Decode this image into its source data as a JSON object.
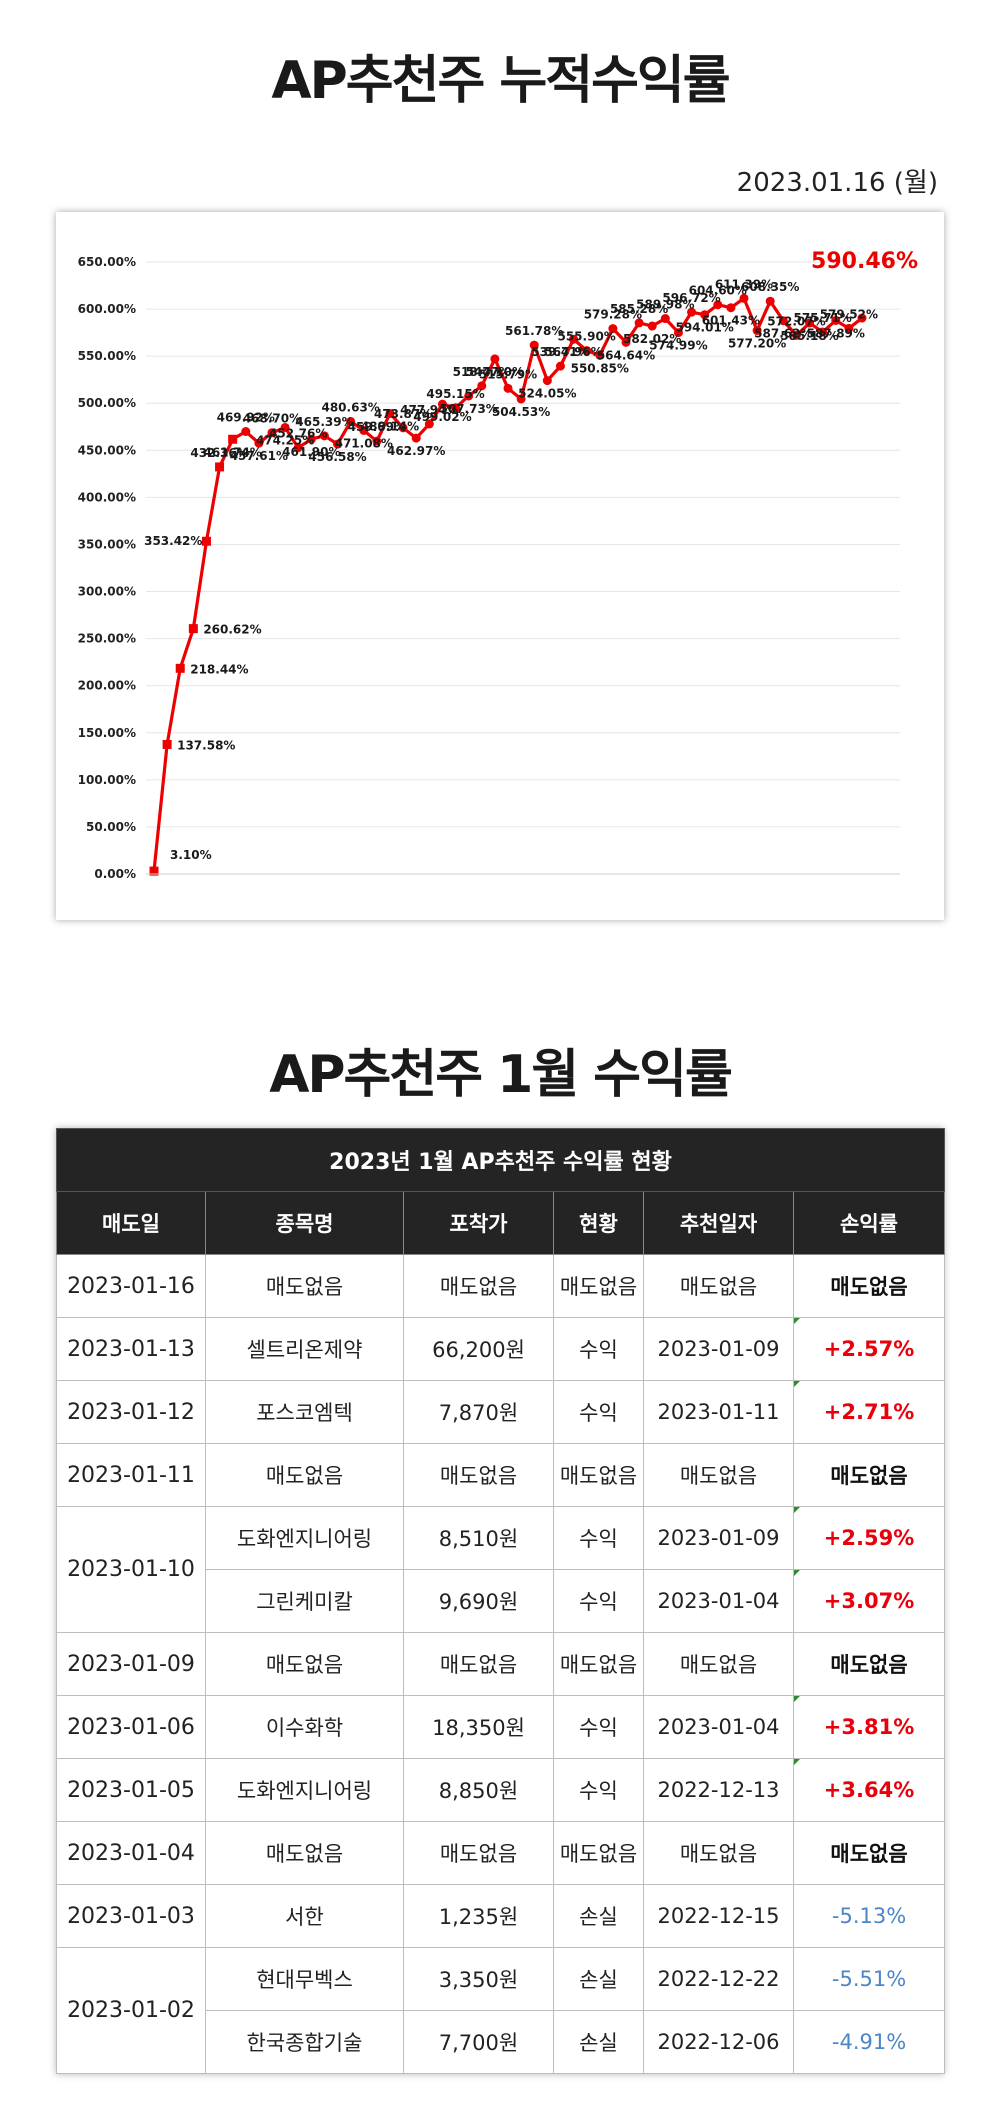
{
  "page": {
    "title1": "AP추천주 누적수익률",
    "date": "2023.01.16 (월)",
    "title2": "AP추천주 1월 수익률"
  },
  "chart_data": {
    "type": "line",
    "title": "",
    "xlabel": "",
    "ylabel": "",
    "ylim": [
      0,
      650
    ],
    "y_ticks": [
      "650.00%",
      "600.00%",
      "550.00%",
      "500.00%",
      "450.00%",
      "400.00%",
      "350.00%",
      "300.00%",
      "250.00%",
      "200.00%",
      "150.00%",
      "100.00%",
      "50.00%",
      "0.00%"
    ],
    "grid": true,
    "legend": "none",
    "line_color": "#ee0000",
    "highlight_label": "590.46%",
    "series": [
      {
        "values": [
          3.1,
          137.58,
          218.44,
          260.62,
          353.42,
          432.36,
          461.74,
          469.92,
          457.61,
          468.7,
          474.25,
          452.76,
          461.9,
          465.39,
          456.58,
          480.63,
          471.08,
          459.69,
          489.14,
          473.87,
          462.97,
          477.94,
          499.02,
          495.15,
          507.73,
          518.47,
          547.1,
          515.79,
          504.53,
          561.78,
          524.05,
          539.41,
          567.96,
          555.9,
          550.85,
          579.28,
          564.64,
          585.28,
          582.02,
          589.98,
          574.99,
          596.72,
          594.01,
          604.6,
          601.43,
          611.39,
          577.2,
          608.35,
          587.62,
          572.07,
          585.18,
          575.71,
          587.89,
          579.52,
          590.46
        ],
        "labels": [
          "3.10%",
          "137.58%",
          "218.44%",
          "260.62%",
          "353.42%",
          "432.36%",
          "461.74%",
          "469.92%",
          "457.61%",
          "468.70%",
          "474.25%",
          "452.76%",
          "461.90%",
          "465.39%",
          "456.58%",
          "480.63%",
          "471.08%",
          "459.69%",
          "489.14%",
          "473.87%",
          "462.97%",
          "477.94%",
          "499.02%",
          "495.15%",
          "507.73%",
          "518.47%",
          "547.10%",
          "515.79%",
          "504.53%",
          "561.78%",
          "524.05%",
          "539.41%",
          "567.96%",
          "555.90%",
          "550.85%",
          "579.28%",
          "564.64%",
          "585.28%",
          "582.02%",
          "589.98%",
          "574.99%",
          "596.72%",
          "594.01%",
          "604.60%",
          "601.43%",
          "611.39%",
          "577.20%",
          "608.35%",
          "587.62%",
          "572.07%",
          "585.18%",
          "575.71%",
          "587.89%",
          "579.52%",
          "590.46%"
        ]
      }
    ]
  },
  "table": {
    "caption": "2023년 1월 AP추천주 수익률 현황",
    "headers": [
      "매도일",
      "종목명",
      "포착가",
      "현황",
      "추천일자",
      "손익률"
    ],
    "colors": {
      "gain": "#e8000b",
      "loss": "#4a86c8"
    },
    "rows": [
      {
        "date": "2023-01-16",
        "span": 1,
        "name": "매도없음",
        "price": "매도없음",
        "status": "매도없음",
        "rec": "매도없음",
        "rate": "매도없음",
        "kind": "none"
      },
      {
        "date": "2023-01-13",
        "span": 1,
        "name": "셀트리온제약",
        "price": "66,200원",
        "status": "수익",
        "rec": "2023-01-09",
        "rate": "+2.57%",
        "kind": "gain"
      },
      {
        "date": "2023-01-12",
        "span": 1,
        "name": "포스코엠텍",
        "price": "7,870원",
        "status": "수익",
        "rec": "2023-01-11",
        "rate": "+2.71%",
        "kind": "gain"
      },
      {
        "date": "2023-01-11",
        "span": 1,
        "name": "매도없음",
        "price": "매도없음",
        "status": "매도없음",
        "rec": "매도없음",
        "rate": "매도없음",
        "kind": "none"
      },
      {
        "date": "2023-01-10",
        "span": 2,
        "name": "도화엔지니어링",
        "price": "8,510원",
        "status": "수익",
        "rec": "2023-01-09",
        "rate": "+2.59%",
        "kind": "gain"
      },
      {
        "date": "",
        "span": 0,
        "name": "그린케미칼",
        "price": "9,690원",
        "status": "수익",
        "rec": "2023-01-04",
        "rate": "+3.07%",
        "kind": "gain"
      },
      {
        "date": "2023-01-09",
        "span": 1,
        "name": "매도없음",
        "price": "매도없음",
        "status": "매도없음",
        "rec": "매도없음",
        "rate": "매도없음",
        "kind": "none"
      },
      {
        "date": "2023-01-06",
        "span": 1,
        "name": "이수화학",
        "price": "18,350원",
        "status": "수익",
        "rec": "2023-01-04",
        "rate": "+3.81%",
        "kind": "gain"
      },
      {
        "date": "2023-01-05",
        "span": 1,
        "name": "도화엔지니어링",
        "price": "8,850원",
        "status": "수익",
        "rec": "2022-12-13",
        "rate": "+3.64%",
        "kind": "gain"
      },
      {
        "date": "2023-01-04",
        "span": 1,
        "name": "매도없음",
        "price": "매도없음",
        "status": "매도없음",
        "rec": "매도없음",
        "rate": "매도없음",
        "kind": "none"
      },
      {
        "date": "2023-01-03",
        "span": 1,
        "name": "서한",
        "price": "1,235원",
        "status": "손실",
        "rec": "2022-12-15",
        "rate": "-5.13%",
        "kind": "loss"
      },
      {
        "date": "2023-01-02",
        "span": 2,
        "name": "현대무벡스",
        "price": "3,350원",
        "status": "손실",
        "rec": "2022-12-22",
        "rate": "-5.51%",
        "kind": "loss"
      },
      {
        "date": "",
        "span": 0,
        "name": "한국종합기술",
        "price": "7,700원",
        "status": "손실",
        "rec": "2022-12-06",
        "rate": "-4.91%",
        "kind": "loss"
      }
    ]
  }
}
